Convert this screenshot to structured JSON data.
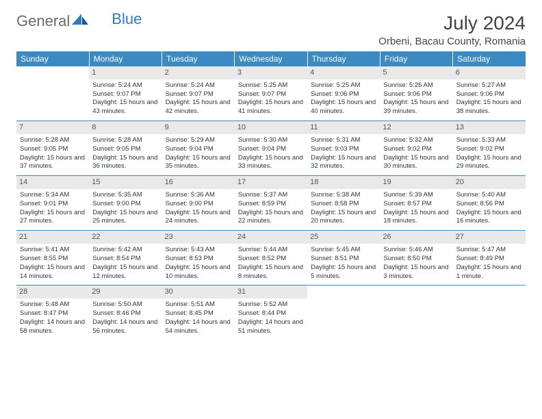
{
  "logo": {
    "text1": "General",
    "text2": "Blue"
  },
  "header": {
    "title": "July 2024",
    "location": "Orbeni, Bacau County, Romania"
  },
  "colors": {
    "header_bg": "#3b8ac4",
    "header_fg": "#ffffff",
    "daynum_bg": "#e9e9e9",
    "rule": "#3b8ac4"
  },
  "dayHeaders": [
    "Sunday",
    "Monday",
    "Tuesday",
    "Wednesday",
    "Thursday",
    "Friday",
    "Saturday"
  ],
  "weeks": [
    [
      {
        "num": "",
        "sunrise": "",
        "sunset": "",
        "daylight": ""
      },
      {
        "num": "1",
        "sunrise": "Sunrise: 5:24 AM",
        "sunset": "Sunset: 9:07 PM",
        "daylight": "Daylight: 15 hours and 43 minutes."
      },
      {
        "num": "2",
        "sunrise": "Sunrise: 5:24 AM",
        "sunset": "Sunset: 9:07 PM",
        "daylight": "Daylight: 15 hours and 42 minutes."
      },
      {
        "num": "3",
        "sunrise": "Sunrise: 5:25 AM",
        "sunset": "Sunset: 9:07 PM",
        "daylight": "Daylight: 15 hours and 41 minutes."
      },
      {
        "num": "4",
        "sunrise": "Sunrise: 5:25 AM",
        "sunset": "Sunset: 9:06 PM",
        "daylight": "Daylight: 15 hours and 40 minutes."
      },
      {
        "num": "5",
        "sunrise": "Sunrise: 5:26 AM",
        "sunset": "Sunset: 9:06 PM",
        "daylight": "Daylight: 15 hours and 39 minutes."
      },
      {
        "num": "6",
        "sunrise": "Sunrise: 5:27 AM",
        "sunset": "Sunset: 9:06 PM",
        "daylight": "Daylight: 15 hours and 38 minutes."
      }
    ],
    [
      {
        "num": "7",
        "sunrise": "Sunrise: 5:28 AM",
        "sunset": "Sunset: 9:05 PM",
        "daylight": "Daylight: 15 hours and 37 minutes."
      },
      {
        "num": "8",
        "sunrise": "Sunrise: 5:28 AM",
        "sunset": "Sunset: 9:05 PM",
        "daylight": "Daylight: 15 hours and 36 minutes."
      },
      {
        "num": "9",
        "sunrise": "Sunrise: 5:29 AM",
        "sunset": "Sunset: 9:04 PM",
        "daylight": "Daylight: 15 hours and 35 minutes."
      },
      {
        "num": "10",
        "sunrise": "Sunrise: 5:30 AM",
        "sunset": "Sunset: 9:04 PM",
        "daylight": "Daylight: 15 hours and 33 minutes."
      },
      {
        "num": "11",
        "sunrise": "Sunrise: 5:31 AM",
        "sunset": "Sunset: 9:03 PM",
        "daylight": "Daylight: 15 hours and 32 minutes."
      },
      {
        "num": "12",
        "sunrise": "Sunrise: 5:32 AM",
        "sunset": "Sunset: 9:02 PM",
        "daylight": "Daylight: 15 hours and 30 minutes."
      },
      {
        "num": "13",
        "sunrise": "Sunrise: 5:33 AM",
        "sunset": "Sunset: 9:02 PM",
        "daylight": "Daylight: 15 hours and 29 minutes."
      }
    ],
    [
      {
        "num": "14",
        "sunrise": "Sunrise: 5:34 AM",
        "sunset": "Sunset: 9:01 PM",
        "daylight": "Daylight: 15 hours and 27 minutes."
      },
      {
        "num": "15",
        "sunrise": "Sunrise: 5:35 AM",
        "sunset": "Sunset: 9:00 PM",
        "daylight": "Daylight: 15 hours and 25 minutes."
      },
      {
        "num": "16",
        "sunrise": "Sunrise: 5:36 AM",
        "sunset": "Sunset: 9:00 PM",
        "daylight": "Daylight: 15 hours and 24 minutes."
      },
      {
        "num": "17",
        "sunrise": "Sunrise: 5:37 AM",
        "sunset": "Sunset: 8:59 PM",
        "daylight": "Daylight: 15 hours and 22 minutes."
      },
      {
        "num": "18",
        "sunrise": "Sunrise: 5:38 AM",
        "sunset": "Sunset: 8:58 PM",
        "daylight": "Daylight: 15 hours and 20 minutes."
      },
      {
        "num": "19",
        "sunrise": "Sunrise: 5:39 AM",
        "sunset": "Sunset: 8:57 PM",
        "daylight": "Daylight: 15 hours and 18 minutes."
      },
      {
        "num": "20",
        "sunrise": "Sunrise: 5:40 AM",
        "sunset": "Sunset: 8:56 PM",
        "daylight": "Daylight: 15 hours and 16 minutes."
      }
    ],
    [
      {
        "num": "21",
        "sunrise": "Sunrise: 5:41 AM",
        "sunset": "Sunset: 8:55 PM",
        "daylight": "Daylight: 15 hours and 14 minutes."
      },
      {
        "num": "22",
        "sunrise": "Sunrise: 5:42 AM",
        "sunset": "Sunset: 8:54 PM",
        "daylight": "Daylight: 15 hours and 12 minutes."
      },
      {
        "num": "23",
        "sunrise": "Sunrise: 5:43 AM",
        "sunset": "Sunset: 8:53 PM",
        "daylight": "Daylight: 15 hours and 10 minutes."
      },
      {
        "num": "24",
        "sunrise": "Sunrise: 5:44 AM",
        "sunset": "Sunset: 8:52 PM",
        "daylight": "Daylight: 15 hours and 8 minutes."
      },
      {
        "num": "25",
        "sunrise": "Sunrise: 5:45 AM",
        "sunset": "Sunset: 8:51 PM",
        "daylight": "Daylight: 15 hours and 5 minutes."
      },
      {
        "num": "26",
        "sunrise": "Sunrise: 5:46 AM",
        "sunset": "Sunset: 8:50 PM",
        "daylight": "Daylight: 15 hours and 3 minutes."
      },
      {
        "num": "27",
        "sunrise": "Sunrise: 5:47 AM",
        "sunset": "Sunset: 8:49 PM",
        "daylight": "Daylight: 15 hours and 1 minute."
      }
    ],
    [
      {
        "num": "28",
        "sunrise": "Sunrise: 5:48 AM",
        "sunset": "Sunset: 8:47 PM",
        "daylight": "Daylight: 14 hours and 58 minutes."
      },
      {
        "num": "29",
        "sunrise": "Sunrise: 5:50 AM",
        "sunset": "Sunset: 8:46 PM",
        "daylight": "Daylight: 14 hours and 56 minutes."
      },
      {
        "num": "30",
        "sunrise": "Sunrise: 5:51 AM",
        "sunset": "Sunset: 8:45 PM",
        "daylight": "Daylight: 14 hours and 54 minutes."
      },
      {
        "num": "31",
        "sunrise": "Sunrise: 5:52 AM",
        "sunset": "Sunset: 8:44 PM",
        "daylight": "Daylight: 14 hours and 51 minutes."
      },
      {
        "num": "",
        "sunrise": "",
        "sunset": "",
        "daylight": ""
      },
      {
        "num": "",
        "sunrise": "",
        "sunset": "",
        "daylight": ""
      },
      {
        "num": "",
        "sunrise": "",
        "sunset": "",
        "daylight": ""
      }
    ]
  ]
}
